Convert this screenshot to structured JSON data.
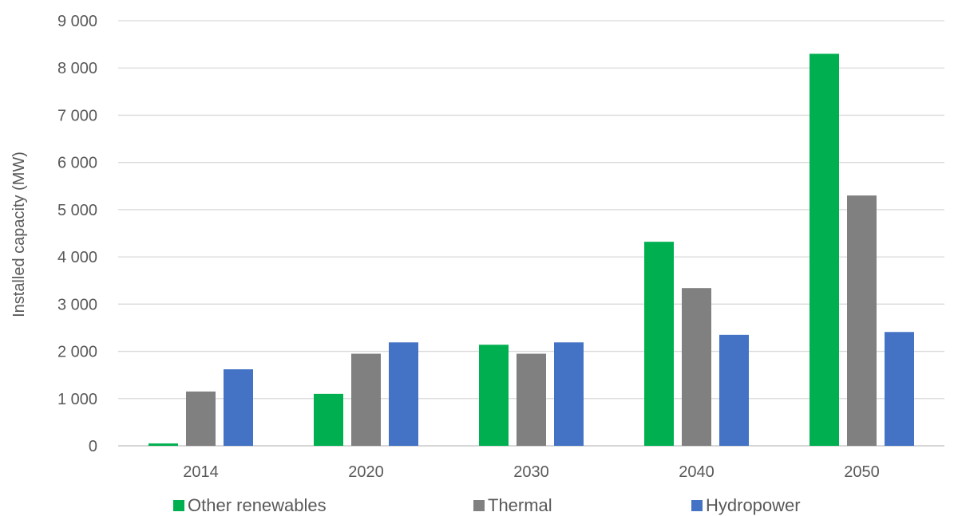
{
  "chart_data": {
    "type": "bar",
    "categories": [
      "2014",
      "2020",
      "2030",
      "2040",
      "2050"
    ],
    "series": [
      {
        "name": "Other renewables",
        "values": [
          50,
          1100,
          2140,
          4320,
          8300
        ],
        "color": "#00b050"
      },
      {
        "name": "Thermal",
        "values": [
          1150,
          1950,
          1950,
          3340,
          5300
        ],
        "color": "#808080"
      },
      {
        "name": "Hydropower",
        "values": [
          1620,
          2190,
          2190,
          2350,
          2410
        ],
        "color": "#4472c4"
      }
    ],
    "title": "",
    "xlabel": "",
    "ylabel": "Installed capacity (MW)",
    "ylim": [
      0,
      9000
    ],
    "yticks": [
      0,
      1000,
      2000,
      3000,
      4000,
      5000,
      6000,
      7000,
      8000,
      9000
    ],
    "ytick_labels": [
      "0",
      "1 000",
      "2 000",
      "3 000",
      "4 000",
      "5 000",
      "6 000",
      "7 000",
      "8 000",
      "9 000"
    ],
    "grid": true,
    "legend_position": "bottom"
  }
}
